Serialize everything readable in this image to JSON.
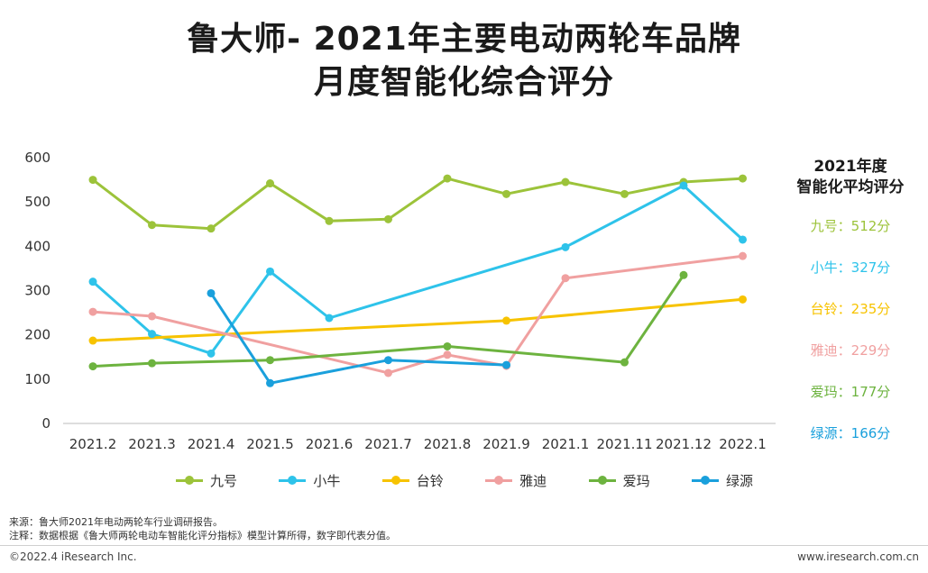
{
  "header": {
    "title_line1": "鲁大师- 2021年主要电动两轮车品牌",
    "title_line2": "月度智能化综合评分"
  },
  "side_panel": {
    "heading_line1": "2021年度",
    "heading_line2": "智能化平均评分",
    "items": [
      {
        "label": "九号：512分",
        "color": "#9cc33a"
      },
      {
        "label": "小牛：327分",
        "color": "#2ec3ea"
      },
      {
        "label": "台铃：235分",
        "color": "#f7c300"
      },
      {
        "label": "雅迪：229分",
        "color": "#f0a0a0"
      },
      {
        "label": "爱玛：177分",
        "color": "#6db33f"
      },
      {
        "label": "绿源：166分",
        "color": "#1aa0dc"
      }
    ]
  },
  "notes": {
    "source": "来源：鲁大师2021年电动两轮车行业调研报告。",
    "remark": "注释：数据根据《鲁大师两轮电动车智能化评分指标》模型计算所得，数字即代表分值。"
  },
  "footer": {
    "copyright": "©2022.4 iResearch Inc.",
    "website": "www.iresearch.com.cn"
  },
  "chart_data": {
    "type": "line",
    "categories": [
      "2021.2",
      "2021.3",
      "2021.4",
      "2021.5",
      "2021.6",
      "2021.7",
      "2021.8",
      "2021.9",
      "2021.1",
      "2021.11",
      "2021.12",
      "2022.1"
    ],
    "ylim": [
      0,
      600
    ],
    "yticks": [
      0,
      100,
      200,
      300,
      400,
      500,
      600
    ],
    "grid": false,
    "legend_position": "bottom",
    "series": [
      {
        "name": "九号",
        "color": "#9cc33a",
        "values": [
          550,
          448,
          440,
          542,
          457,
          461,
          553,
          518,
          545,
          518,
          545,
          553
        ]
      },
      {
        "name": "小牛",
        "color": "#2ec3ea",
        "values": [
          320,
          202,
          158,
          343,
          238,
          null,
          null,
          null,
          398,
          null,
          537,
          415
        ]
      },
      {
        "name": "台铃",
        "color": "#f7c300",
        "values": [
          187,
          null,
          null,
          null,
          null,
          null,
          null,
          232,
          null,
          null,
          null,
          280
        ]
      },
      {
        "name": "雅迪",
        "color": "#f0a0a0",
        "values": [
          252,
          242,
          null,
          null,
          null,
          114,
          155,
          130,
          328,
          null,
          null,
          378
        ]
      },
      {
        "name": "爱玛",
        "color": "#6db33f",
        "values": [
          129,
          136,
          null,
          143,
          null,
          null,
          174,
          null,
          null,
          138,
          335,
          null
        ]
      },
      {
        "name": "绿源",
        "color": "#1aa0dc",
        "values": [
          null,
          null,
          294,
          91,
          null,
          143,
          null,
          132,
          null,
          null,
          null,
          null
        ]
      }
    ]
  }
}
